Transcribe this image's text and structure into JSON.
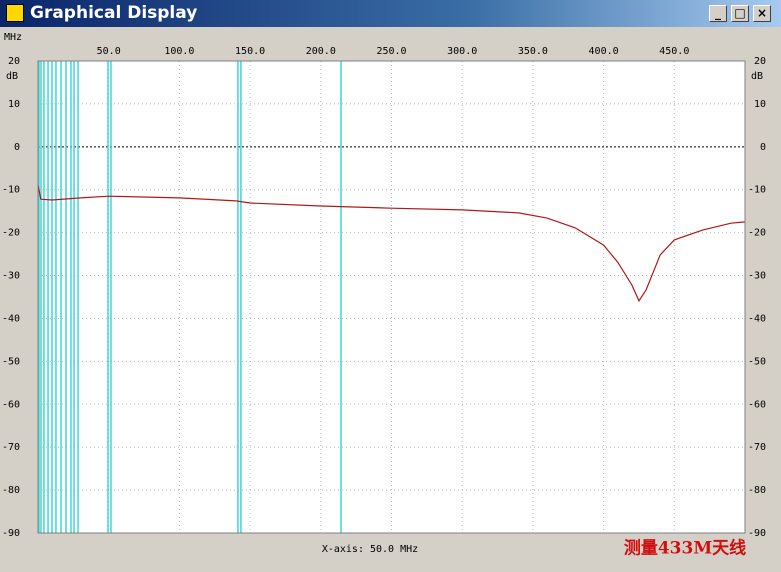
{
  "window": {
    "title": "Graphical Display"
  },
  "chart_data": {
    "type": "line",
    "xlabel": "MHz",
    "ylabel": "dB",
    "footer": "X-axis: 50.0 MHz",
    "annotation": "测量433M天线",
    "xlim": [
      0,
      500
    ],
    "xticks": [
      {
        "value": 50,
        "label": "50.0"
      },
      {
        "value": 100,
        "label": "100.0"
      },
      {
        "value": 150,
        "label": "150.0"
      },
      {
        "value": 200,
        "label": "200.0"
      },
      {
        "value": 250,
        "label": "250.0"
      },
      {
        "value": 300,
        "label": "300.0"
      },
      {
        "value": 350,
        "label": "350.0"
      },
      {
        "value": 400,
        "label": "400.0"
      },
      {
        "value": 450,
        "label": "450.0"
      }
    ],
    "ylim": [
      -90,
      20
    ],
    "yticks": [
      20,
      10,
      0,
      -10,
      -20,
      -30,
      -40,
      -50,
      -60,
      -70,
      -80,
      -90
    ],
    "grid": true,
    "markers": {
      "color": "#3fd6d6",
      "x": [
        0.7,
        2.1,
        4.2,
        7.1,
        9.9,
        12.7,
        16.3,
        19.8,
        23.3,
        25.5,
        28.3,
        49.5,
        51.6,
        141.4,
        143.5,
        214.3
      ]
    },
    "series": [
      {
        "color": "#b01818",
        "x": [
          0,
          2,
          10,
          30,
          50,
          100,
          140,
          150,
          200,
          250,
          300,
          340,
          360,
          380,
          400,
          410,
          420,
          425,
          430,
          440,
          450,
          470,
          490,
          500
        ],
        "values": [
          -8.9,
          -12.2,
          -12.4,
          -11.9,
          -11.5,
          -11.9,
          -12.6,
          -13.1,
          -13.8,
          -14.3,
          -14.7,
          -15.4,
          -16.6,
          -18.9,
          -22.9,
          -26.9,
          -32.2,
          -35.9,
          -33.4,
          -25.2,
          -21.7,
          -19.4,
          -17.8,
          -17.5
        ]
      }
    ]
  }
}
